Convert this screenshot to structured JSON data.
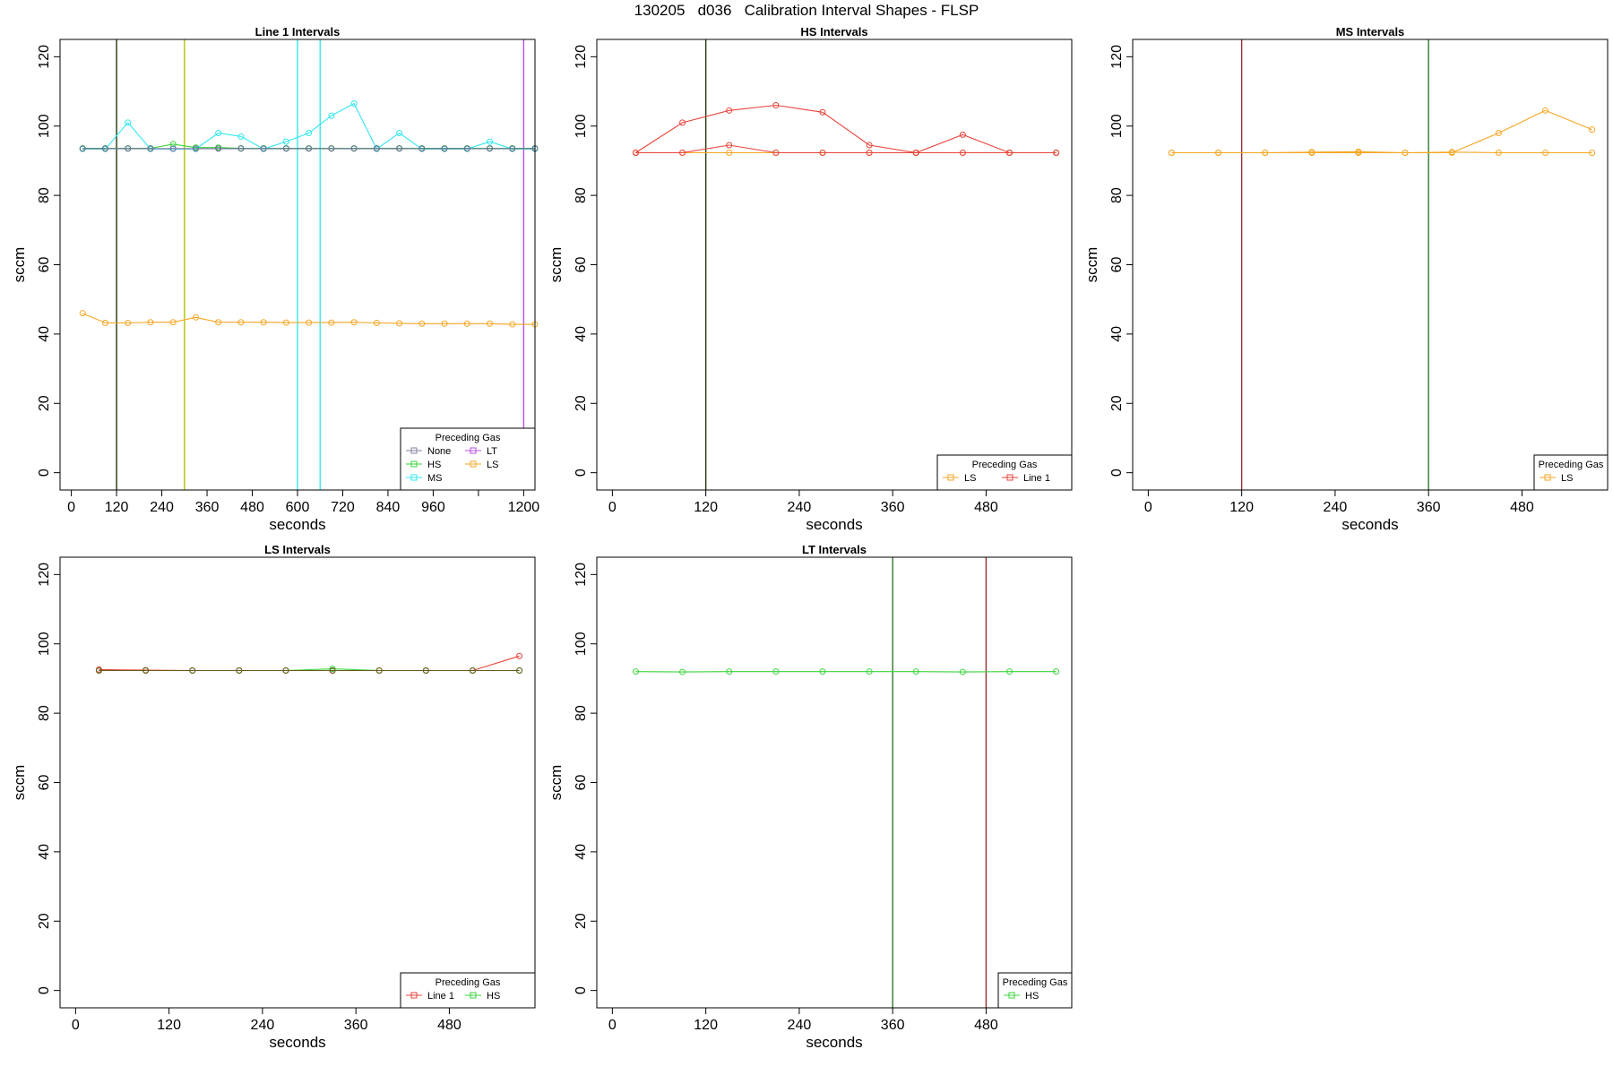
{
  "title": "130205   d036   Calibration Interval Shapes - FLSP",
  "chart_data": [
    {
      "type": "line",
      "title": "Line 1 Intervals",
      "xlabel": "seconds",
      "ylabel": "sccm",
      "xlim": [
        -30,
        1230
      ],
      "ylim": [
        -5,
        125
      ],
      "xticks": [
        0,
        120,
        240,
        360,
        480,
        600,
        720,
        840,
        960,
        1080,
        1200
      ],
      "xtick_labels": [
        "0",
        "120",
        "240",
        "360",
        "480",
        "600",
        "720",
        "840",
        "960",
        "",
        "1200"
      ],
      "yticks": [
        0,
        20,
        40,
        60,
        80,
        100,
        120
      ],
      "vlines": [
        {
          "x": 120,
          "color": "#1f3a0a"
        },
        {
          "x": 300,
          "color": "#b3c400"
        },
        {
          "x": 600,
          "color": "#33e6f0"
        },
        {
          "x": 660,
          "color": "#33e6f0"
        },
        {
          "x": 1200,
          "color": "#b74fe3"
        }
      ],
      "legend": {
        "title": "Preceding Gas",
        "position": "bottom-right",
        "columns": 2,
        "entries": [
          {
            "label": "None",
            "color": "#8080a0"
          },
          {
            "label": "LT",
            "color": "#b74fe3"
          },
          {
            "label": "HS",
            "color": "#39d43a"
          },
          {
            "label": "LS",
            "color": "#f5a623"
          },
          {
            "label": "MS",
            "color": "#33e6f0"
          }
        ]
      },
      "series": [
        {
          "color": "#f5a623",
          "x": [
            30,
            90,
            150,
            210,
            270,
            330,
            390,
            450,
            510,
            570,
            630,
            690,
            750,
            810,
            870,
            930,
            990,
            1050,
            1110,
            1170,
            1230
          ],
          "y": [
            46,
            43.2,
            43.2,
            43.4,
            43.4,
            44.8,
            43.4,
            43.4,
            43.4,
            43.3,
            43.3,
            43.3,
            43.4,
            43.2,
            43.1,
            43.0,
            43.0,
            43.0,
            43.0,
            42.8,
            42.8
          ]
        },
        {
          "color": "#39d43a",
          "x": [
            30,
            90,
            150,
            210,
            270,
            330,
            390,
            450,
            510,
            570,
            630,
            690,
            750,
            810,
            870,
            930,
            990,
            1050,
            1110,
            1170,
            1230
          ],
          "y": [
            93.6,
            93.6,
            93.6,
            93.6,
            94.8,
            93.8,
            93.8,
            93.6,
            93.6,
            93.6,
            93.6,
            93.6,
            93.6,
            93.6,
            93.6,
            93.6,
            93.6,
            93.6,
            93.6,
            93.6,
            93.6
          ]
        },
        {
          "color": "#33e6f0",
          "x": [
            30,
            90,
            150,
            210,
            270,
            330,
            390,
            450,
            510,
            570,
            630,
            690,
            750,
            810,
            870,
            930,
            990,
            1050,
            1110,
            1170,
            1230
          ],
          "y": [
            93.4,
            93.4,
            101,
            93.4,
            93.4,
            93.4,
            98,
            97,
            93.4,
            95.5,
            98,
            103,
            106.5,
            93.4,
            98,
            93.4,
            93.4,
            93.4,
            95.5,
            93.4,
            93.4
          ]
        },
        {
          "color": "#6a6a9a",
          "x": [
            30,
            90,
            150,
            210,
            270,
            330,
            390,
            450,
            510,
            570,
            630,
            690,
            750,
            810,
            870,
            930,
            990,
            1050,
            1110,
            1170,
            1230
          ],
          "y": [
            93.5,
            93.5,
            93.5,
            93.5,
            93.5,
            93.5,
            93.5,
            93.5,
            93.5,
            93.5,
            93.5,
            93.5,
            93.5,
            93.5,
            93.5,
            93.5,
            93.5,
            93.5,
            93.5,
            93.5,
            93.5
          ]
        }
      ]
    },
    {
      "type": "line",
      "title": "HS Intervals",
      "xlabel": "seconds",
      "ylabel": "sccm",
      "xlim": [
        -20,
        590
      ],
      "ylim": [
        -5,
        125
      ],
      "xticks": [
        0,
        120,
        240,
        360,
        480
      ],
      "xtick_labels": [
        "0",
        "120",
        "240",
        "360",
        "480"
      ],
      "yticks": [
        0,
        20,
        40,
        60,
        80,
        100,
        120
      ],
      "vlines": [
        {
          "x": 120,
          "color": "#1f3a0a"
        }
      ],
      "legend": {
        "title": "Preceding Gas",
        "position": "bottom-right",
        "columns": 2,
        "entries": [
          {
            "label": "LS",
            "color": "#f5a623"
          },
          {
            "label": "Line 1",
            "color": "#e8443a"
          }
        ]
      },
      "series": [
        {
          "color": "#f5a623",
          "x": [
            30,
            90,
            150,
            210,
            270,
            330,
            390,
            450,
            510,
            570
          ],
          "y": [
            92.3,
            92.3,
            92.3,
            92.3,
            92.3,
            92.3,
            92.3,
            92.3,
            92.3,
            92.3
          ]
        },
        {
          "color": "#e8443a",
          "x": [
            30,
            90,
            150,
            210,
            270,
            330,
            390,
            450,
            510,
            570
          ],
          "y": [
            92.3,
            101,
            104.5,
            106,
            104,
            94.5,
            92.3,
            97.5,
            92.3,
            92.3
          ]
        },
        {
          "color": "#e8443a",
          "x": [
            30,
            90,
            150,
            210,
            270,
            330,
            390,
            450,
            510,
            570
          ],
          "y": [
            92.3,
            92.3,
            94.5,
            92.3,
            92.3,
            92.3,
            92.3,
            92.3,
            92.3,
            92.3
          ]
        }
      ]
    },
    {
      "type": "line",
      "title": "MS Intervals",
      "xlabel": "seconds",
      "ylabel": "sccm",
      "xlim": [
        -20,
        590
      ],
      "ylim": [
        -5,
        125
      ],
      "xticks": [
        0,
        120,
        240,
        360,
        480
      ],
      "xtick_labels": [
        "0",
        "120",
        "240",
        "360",
        "480"
      ],
      "yticks": [
        0,
        20,
        40,
        60,
        80,
        100,
        120
      ],
      "vlines": [
        {
          "x": 120,
          "color": "#9e2b2b"
        },
        {
          "x": 360,
          "color": "#2f7a2f"
        }
      ],
      "legend": {
        "title": "Preceding Gas",
        "position": "bottom-right",
        "columns": 1,
        "entries": [
          {
            "label": "LS",
            "color": "#f5a623"
          }
        ]
      },
      "series": [
        {
          "color": "#f5a623",
          "x": [
            30,
            90,
            150,
            210,
            270,
            330,
            390,
            450,
            510,
            570
          ],
          "y": [
            92.3,
            92.3,
            92.3,
            92.5,
            92.6,
            92.3,
            92.5,
            92.3,
            92.3,
            92.3
          ]
        },
        {
          "color": "#f5a623",
          "x": [
            30,
            90,
            150,
            210,
            270,
            330,
            390,
            450,
            510,
            570
          ],
          "y": [
            92.3,
            92.3,
            92.3,
            92.3,
            92.3,
            92.3,
            92.3,
            98,
            104.5,
            99
          ]
        }
      ]
    },
    {
      "type": "line",
      "title": "LS Intervals",
      "xlabel": "seconds",
      "ylabel": "sccm",
      "xlim": [
        -20,
        590
      ],
      "ylim": [
        -5,
        125
      ],
      "xticks": [
        0,
        120,
        240,
        360,
        480
      ],
      "xtick_labels": [
        "0",
        "120",
        "240",
        "360",
        "480"
      ],
      "yticks": [
        0,
        20,
        40,
        60,
        80,
        100,
        120
      ],
      "vlines": [],
      "legend": {
        "title": "Preceding Gas",
        "position": "bottom-right",
        "columns": 2,
        "entries": [
          {
            "label": "Line 1",
            "color": "#e8443a"
          },
          {
            "label": "HS",
            "color": "#39d43a"
          }
        ]
      },
      "series": [
        {
          "color": "#e8443a",
          "x": [
            30,
            90,
            150,
            210,
            270,
            330,
            390,
            450,
            510,
            570
          ],
          "y": [
            92.6,
            92.4,
            92.3,
            92.3,
            92.3,
            92.3,
            92.3,
            92.3,
            92.3,
            96.5
          ]
        },
        {
          "color": "#39d43a",
          "x": [
            30,
            90,
            150,
            210,
            270,
            330,
            390,
            450,
            510,
            570
          ],
          "y": [
            92.3,
            92.3,
            92.3,
            92.3,
            92.3,
            92.8,
            92.3,
            92.3,
            92.3,
            92.3
          ]
        },
        {
          "color": "#6b5a1e",
          "x": [
            30,
            90,
            150,
            210,
            270,
            330,
            390,
            450,
            510,
            570
          ],
          "y": [
            92.3,
            92.3,
            92.3,
            92.3,
            92.3,
            92.3,
            92.3,
            92.3,
            92.3,
            92.3
          ]
        }
      ]
    },
    {
      "type": "line",
      "title": "LT Intervals",
      "xlabel": "seconds",
      "ylabel": "sccm",
      "xlim": [
        -20,
        590
      ],
      "ylim": [
        -5,
        125
      ],
      "xticks": [
        0,
        120,
        240,
        360,
        480
      ],
      "xtick_labels": [
        "0",
        "120",
        "240",
        "360",
        "480"
      ],
      "yticks": [
        0,
        20,
        40,
        60,
        80,
        100,
        120
      ],
      "vlines": [
        {
          "x": 360,
          "color": "#2f7a2f"
        },
        {
          "x": 480,
          "color": "#9e2b2b"
        }
      ],
      "legend": {
        "title": "Preceding Gas",
        "position": "bottom-right",
        "columns": 1,
        "entries": [
          {
            "label": "HS",
            "color": "#39d43a"
          }
        ]
      },
      "series": [
        {
          "color": "#39d43a",
          "x": [
            30,
            90,
            150,
            210,
            270,
            330,
            390,
            450,
            510,
            570
          ],
          "y": [
            92.0,
            91.9,
            92.0,
            92.0,
            92.0,
            92.0,
            92.0,
            91.9,
            92.0,
            92.0
          ]
        }
      ]
    }
  ]
}
